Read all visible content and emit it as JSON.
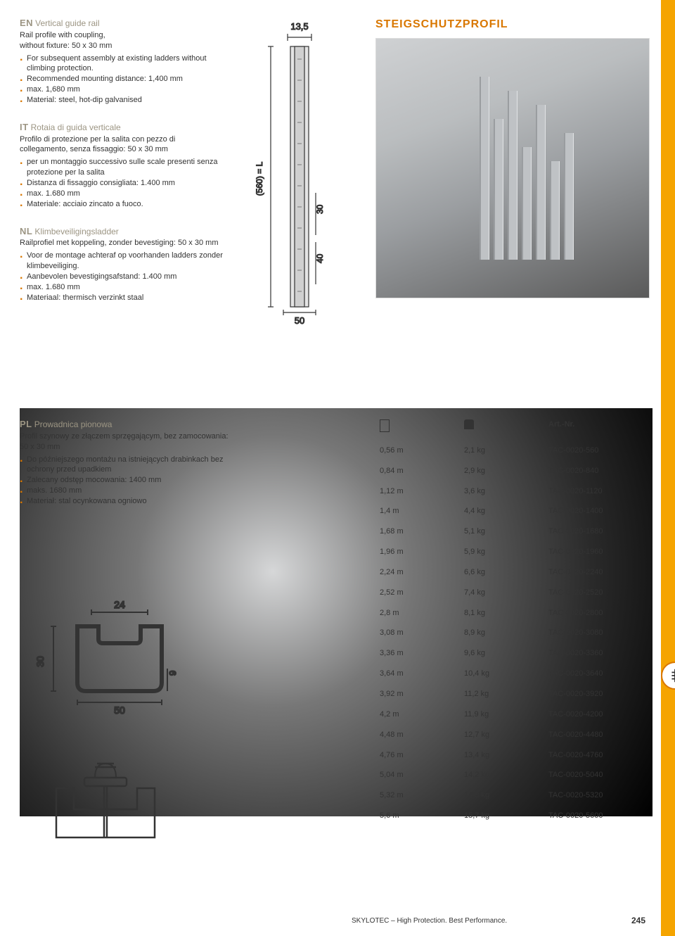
{
  "product_title": "STEIGSCHUTZPROFIL",
  "diagram": {
    "top": "13,5",
    "height": "(560) = L",
    "h1": "30",
    "h2": "40",
    "width": "50"
  },
  "profile": {
    "w": "24",
    "h": "30",
    "lip": "9",
    "base": "50"
  },
  "en": {
    "tag": "EN",
    "title": "Vertical guide rail",
    "intro": "Rail profile with coupling,\nwithout fixture: 50 x 30 mm",
    "items": [
      "For subsequent assembly at existing ladders without climbing protection.",
      "Recommended mounting distance: 1,400 mm",
      "max. 1,680 mm",
      "Material: steel, hot-dip galvanised"
    ]
  },
  "it": {
    "tag": "IT",
    "title": "Rotaia di guida verticale",
    "intro": "Profilo di protezione per la salita con pezzo di collegamento, senza fissaggio: 50 x 30 mm",
    "items": [
      "per un montaggio successivo sulle scale presenti senza protezione per la salita",
      "Distanza di fissaggio consigliata: 1.400 mm",
      "max. 1.680 mm",
      "Materiale: acciaio zincato a fuoco."
    ]
  },
  "nl": {
    "tag": "NL",
    "title": "Klimbeveiligingsladder",
    "intro": "Railprofiel met koppeling, zonder bevestiging: 50 x 30 mm",
    "items": [
      "Voor de montage achteraf op voorhanden ladders zonder klimbeveiliging.",
      "Aanbevolen bevestigingsafstand: 1.400 mm",
      "max. 1.680 mm",
      "Materiaal: thermisch verzinkt staal"
    ]
  },
  "pl": {
    "tag": "PL",
    "title": "Prowadnica pionowa",
    "intro": "Profil szynowy ze złączem sprzęgającym, bez zamocowania: 50 x 30 mm",
    "items": [
      "Do późniejszego montażu na istniejących drabinkach bez ochrony przed upadkiem",
      "Zalecany odstęp mocowania: 1400 mm",
      "maks. 1680 mm",
      "Materiał: stal ocynkowana ogniowo"
    ]
  },
  "table": {
    "art_header": "Art.-Nr.",
    "rows": [
      {
        "l": "0,56 m",
        "w": "2,1 kg",
        "a": "TAC-0020-560"
      },
      {
        "l": "0,84 m",
        "w": "2,9 kg",
        "a": "TAC-0020-840"
      },
      {
        "l": "1,12 m",
        "w": "3,6 kg",
        "a": "TAC-0020-1120"
      },
      {
        "l": "1,4 m",
        "w": "4,4 kg",
        "a": "TAC-0020-1400"
      },
      {
        "l": "1,68 m",
        "w": "5,1 kg",
        "a": "TAC-0020-1680"
      },
      {
        "l": "1,96 m",
        "w": "5,9 kg",
        "a": "TAC-0020-1960"
      },
      {
        "l": "2,24 m",
        "w": "6,6 kg",
        "a": "TAC-0020-2240"
      },
      {
        "l": "2,52 m",
        "w": "7,4 kg",
        "a": "TAC-0020-2520"
      },
      {
        "l": "2,8 m",
        "w": "8,1 kg",
        "a": "TAC-0020-2800"
      },
      {
        "l": "3,08 m",
        "w": "8,9 kg",
        "a": "TAC-0020-3080"
      },
      {
        "l": "3,36 m",
        "w": "9,6 kg",
        "a": "TAC-0020-3360"
      },
      {
        "l": "3,64 m",
        "w": "10,4 kg",
        "a": "TAC-0020-3640"
      },
      {
        "l": "3,92 m",
        "w": "11,2 kg",
        "a": "TAC-0020-3920"
      },
      {
        "l": "4,2 m",
        "w": "11,9 kg",
        "a": "TAC-0020-4200"
      },
      {
        "l": "4,48 m",
        "w": "12,7 kg",
        "a": "TAC-0020-4480"
      },
      {
        "l": "4,76 m",
        "w": "13,4 kg",
        "a": "TAC-0020-4760"
      },
      {
        "l": "5,04 m",
        "w": "14,2 kg",
        "a": "TAC-0020-5040"
      },
      {
        "l": "5,32 m",
        "w": "14,9 kg",
        "a": "TAC-0020-5320"
      },
      {
        "l": "5,6 m",
        "w": "15,7 kg",
        "a": "TAC-0020-5600"
      }
    ]
  },
  "footer": "SKYLOTEC – High Protection. Best Performance.",
  "page_num": "245",
  "colors": {
    "accent": "#d97700",
    "tab": "#f5a400"
  }
}
